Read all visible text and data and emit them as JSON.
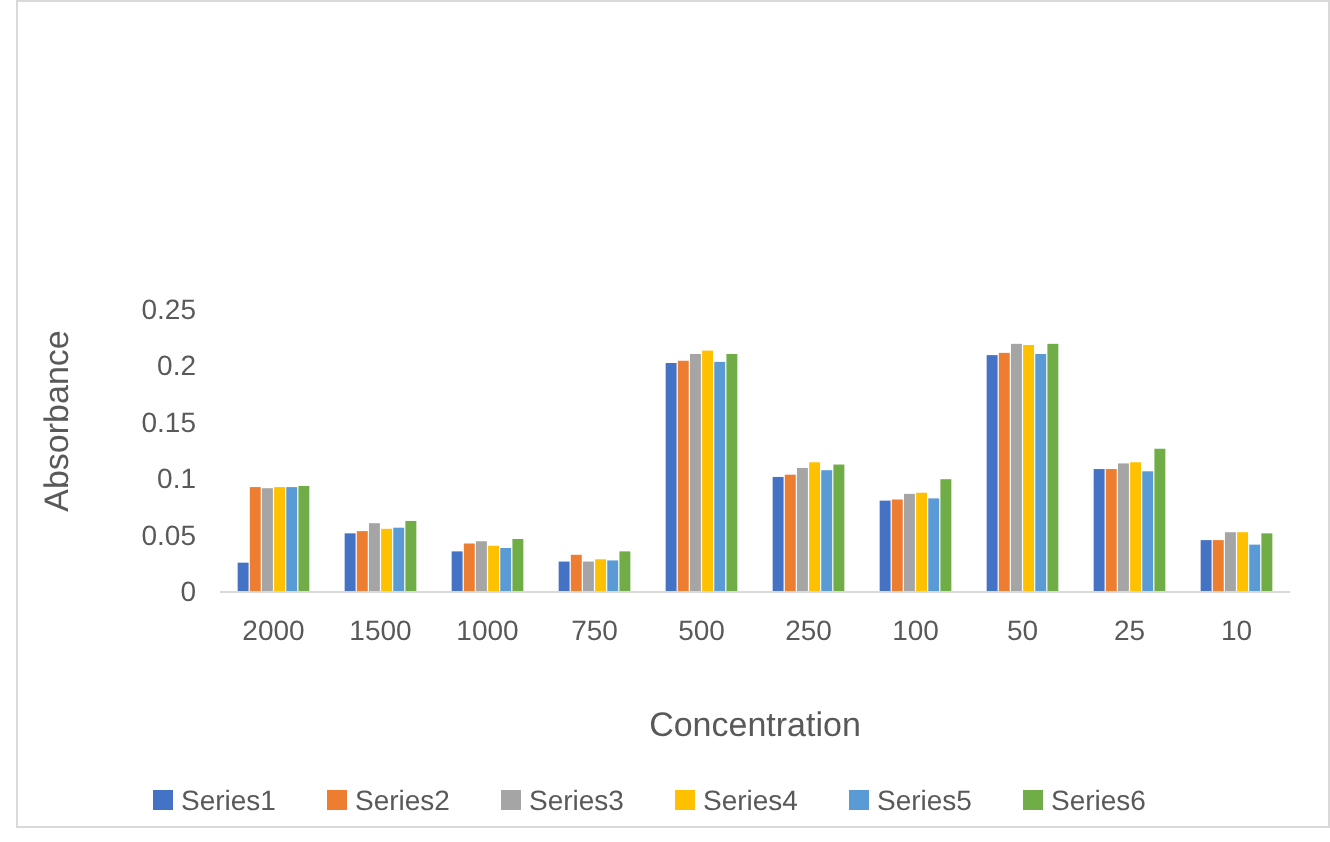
{
  "chart_data": {
    "type": "bar",
    "xlabel": "Concentration",
    "ylabel": "Absorbance",
    "categories": [
      "2000",
      "1500",
      "1000",
      "750",
      "500",
      "250",
      "100",
      "50",
      "25",
      "10"
    ],
    "series": [
      {
        "name": "Series1",
        "color": "#4472c4",
        "values": [
          0.026,
          0.052,
          0.036,
          0.027,
          0.203,
          0.102,
          0.081,
          0.21,
          0.109,
          0.046
        ]
      },
      {
        "name": "Series2",
        "color": "#ed7d31",
        "values": [
          0.093,
          0.054,
          0.043,
          0.033,
          0.205,
          0.104,
          0.082,
          0.212,
          0.109,
          0.046
        ]
      },
      {
        "name": "Series3",
        "color": "#a5a5a5",
        "values": [
          0.092,
          0.061,
          0.045,
          0.027,
          0.211,
          0.11,
          0.087,
          0.22,
          0.114,
          0.053
        ]
      },
      {
        "name": "Series4",
        "color": "#ffc000",
        "values": [
          0.093,
          0.056,
          0.041,
          0.029,
          0.214,
          0.115,
          0.088,
          0.219,
          0.115,
          0.053
        ]
      },
      {
        "name": "Series5",
        "color": "#5b9bd5",
        "values": [
          0.093,
          0.057,
          0.039,
          0.028,
          0.204,
          0.108,
          0.083,
          0.211,
          0.107,
          0.042
        ]
      },
      {
        "name": "Series6",
        "color": "#70ad47",
        "values": [
          0.094,
          0.063,
          0.047,
          0.036,
          0.211,
          0.113,
          0.1,
          0.22,
          0.127,
          0.052
        ]
      }
    ],
    "ylim": [
      0,
      0.25
    ],
    "yticks": [
      0,
      {
        "value": 0.05,
        "label": "0.05"
      },
      {
        "value": 0.1,
        "label": "0.1"
      },
      {
        "value": 0.15,
        "label": "0.15"
      },
      {
        "value": 0.2,
        "label": "0.2"
      },
      {
        "value": 0.25,
        "label": "0.25"
      }
    ],
    "grid": false,
    "legend": "bottom"
  }
}
